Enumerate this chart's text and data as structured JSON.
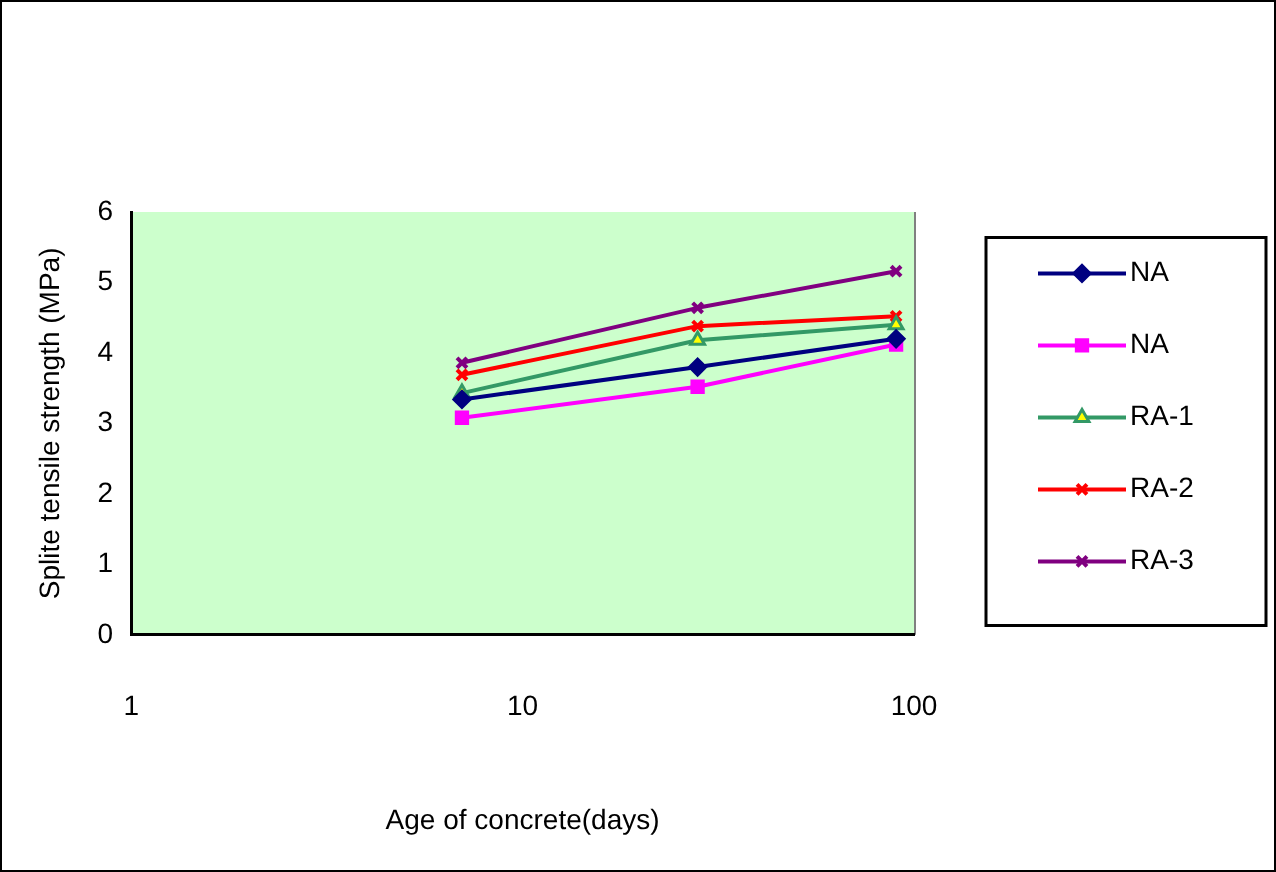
{
  "chart_data": {
    "type": "line",
    "xlabel": "Age of concrete(days)",
    "ylabel": "Splite tensile strength (MPa)",
    "x": [
      7,
      28,
      90
    ],
    "log": "x",
    "xlim": [
      1,
      100
    ],
    "xticks": [
      1,
      10,
      100
    ],
    "ylim": [
      0,
      6
    ],
    "yticks": [
      0,
      1,
      2,
      3,
      4,
      5,
      6
    ],
    "grid": false,
    "legend": "right",
    "series": [
      {
        "name": "NA",
        "color": "#000080",
        "marker": "diamond",
        "values": [
          3.34,
          3.8,
          4.2
        ]
      },
      {
        "name": "NA",
        "color": "#ff00ff",
        "marker": "square",
        "values": [
          3.08,
          3.52,
          4.12
        ]
      },
      {
        "name": "RA-1",
        "color": "#339966",
        "marker": "triangle",
        "values": [
          3.43,
          4.18,
          4.4
        ]
      },
      {
        "name": "RA-2",
        "color": "#ff0000",
        "marker": "cross",
        "values": [
          3.69,
          4.38,
          4.52
        ]
      },
      {
        "name": "RA-3",
        "color": "#800080",
        "marker": "cross",
        "values": [
          3.86,
          4.64,
          5.16
        ]
      }
    ]
  }
}
